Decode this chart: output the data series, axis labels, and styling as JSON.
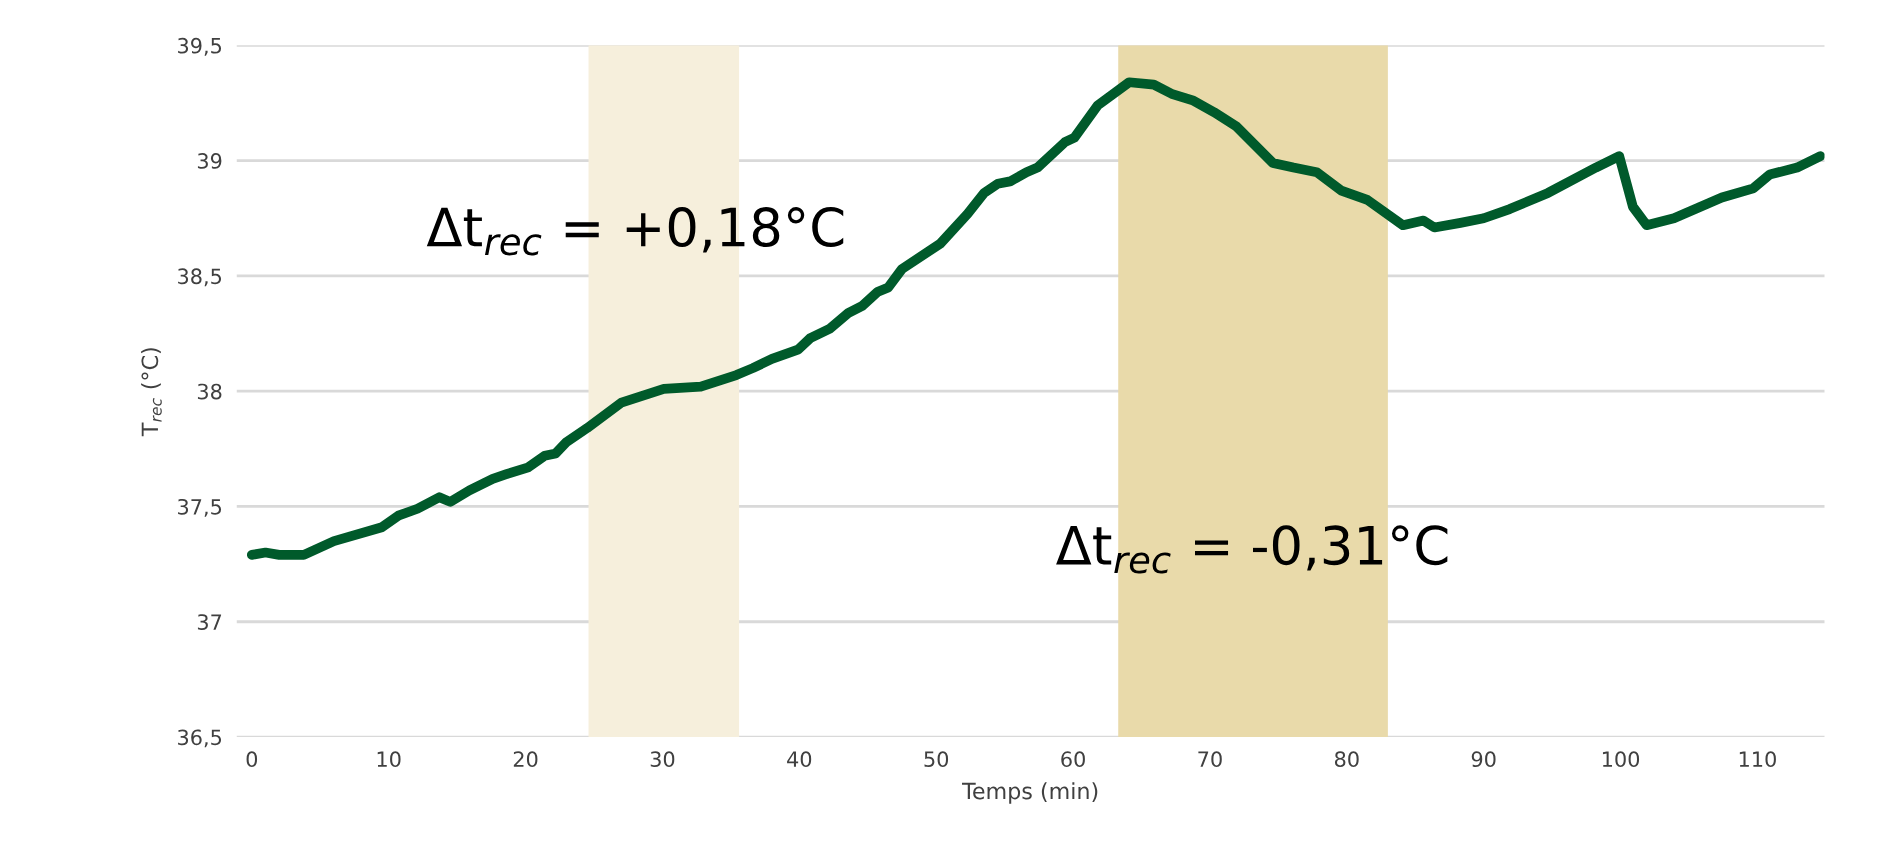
{
  "chart_data": {
    "type": "line",
    "xlabel": "Temps (min)",
    "ylabel": "T$_{rec}$ (°C)",
    "x": [
      0,
      1.0,
      2.0,
      3.8,
      6.0,
      9.5,
      10.7,
      12.1,
      13.7,
      14.5,
      15.9,
      17.6,
      18.6,
      20.2,
      21.4,
      22.2,
      23.0,
      24.5,
      27.0,
      30.1,
      32.8,
      35.4,
      36.6,
      38.0,
      39.9,
      40.8,
      42.2,
      43.6,
      44.6,
      45.7,
      46.5,
      47.5,
      50.3,
      52.3,
      53.5,
      54.5,
      55.4,
      56.6,
      57.4,
      59.4,
      60.1,
      61.8,
      64.1,
      65.9,
      67.2,
      68.8,
      70.3,
      71.9,
      74.6,
      76.1,
      77.8,
      79.6,
      81.5,
      84.1,
      85.6,
      86.4,
      88.3,
      90.0,
      91.9,
      94.7,
      98.2,
      99.9,
      100.9,
      101.9,
      103.9,
      107.4,
      109.7,
      110.9,
      112.9,
      114.6
    ],
    "series": [
      {
        "color": "#005a2b",
        "values": [
          37.29,
          37.3,
          37.29,
          37.29,
          37.35,
          37.41,
          37.46,
          37.49,
          37.54,
          37.52,
          37.57,
          37.62,
          37.64,
          37.67,
          37.72,
          37.73,
          37.78,
          37.84,
          37.95,
          38.01,
          38.02,
          38.07,
          38.1,
          38.14,
          38.18,
          38.23,
          38.27,
          38.34,
          38.37,
          38.43,
          38.45,
          38.53,
          38.64,
          38.77,
          38.86,
          38.9,
          38.91,
          38.95,
          38.97,
          39.08,
          39.1,
          39.24,
          39.34,
          39.33,
          39.29,
          39.26,
          39.21,
          39.15,
          38.99,
          38.97,
          38.95,
          38.87,
          38.83,
          38.72,
          38.74,
          38.71,
          38.73,
          38.75,
          38.79,
          38.86,
          38.97,
          39.02,
          38.8,
          38.72,
          38.75,
          38.84,
          38.88,
          38.94,
          38.97,
          39.02
        ]
      }
    ],
    "xlim": [
      -1.1,
      114.9
    ],
    "xticks": [
      0,
      10,
      20,
      30,
      40,
      50,
      60,
      70,
      80,
      90,
      100,
      110
    ],
    "ylim": [
      36.5,
      39.5
    ],
    "yticks": [
      {
        "value": 36.5,
        "label": "36,5"
      },
      37,
      {
        "value": 37.5,
        "label": "37,5"
      },
      38,
      {
        "value": 38.5,
        "label": "38,5"
      },
      39,
      {
        "value": 39.5,
        "label": "39,5"
      }
    ],
    "grid": "y",
    "marker": "none",
    "line_style": "solid",
    "bands": [
      {
        "axis": "x",
        "from": 24.6,
        "to": 35.6,
        "color": "#f6efdc",
        "label": "Δt$_{rec}$ = +0,18°C"
      },
      {
        "axis": "x",
        "from": 63.3,
        "to": 83.0,
        "color": "#e9daaa",
        "label": "Δt$_{rec}$ = -0,31°C"
      }
    ]
  }
}
